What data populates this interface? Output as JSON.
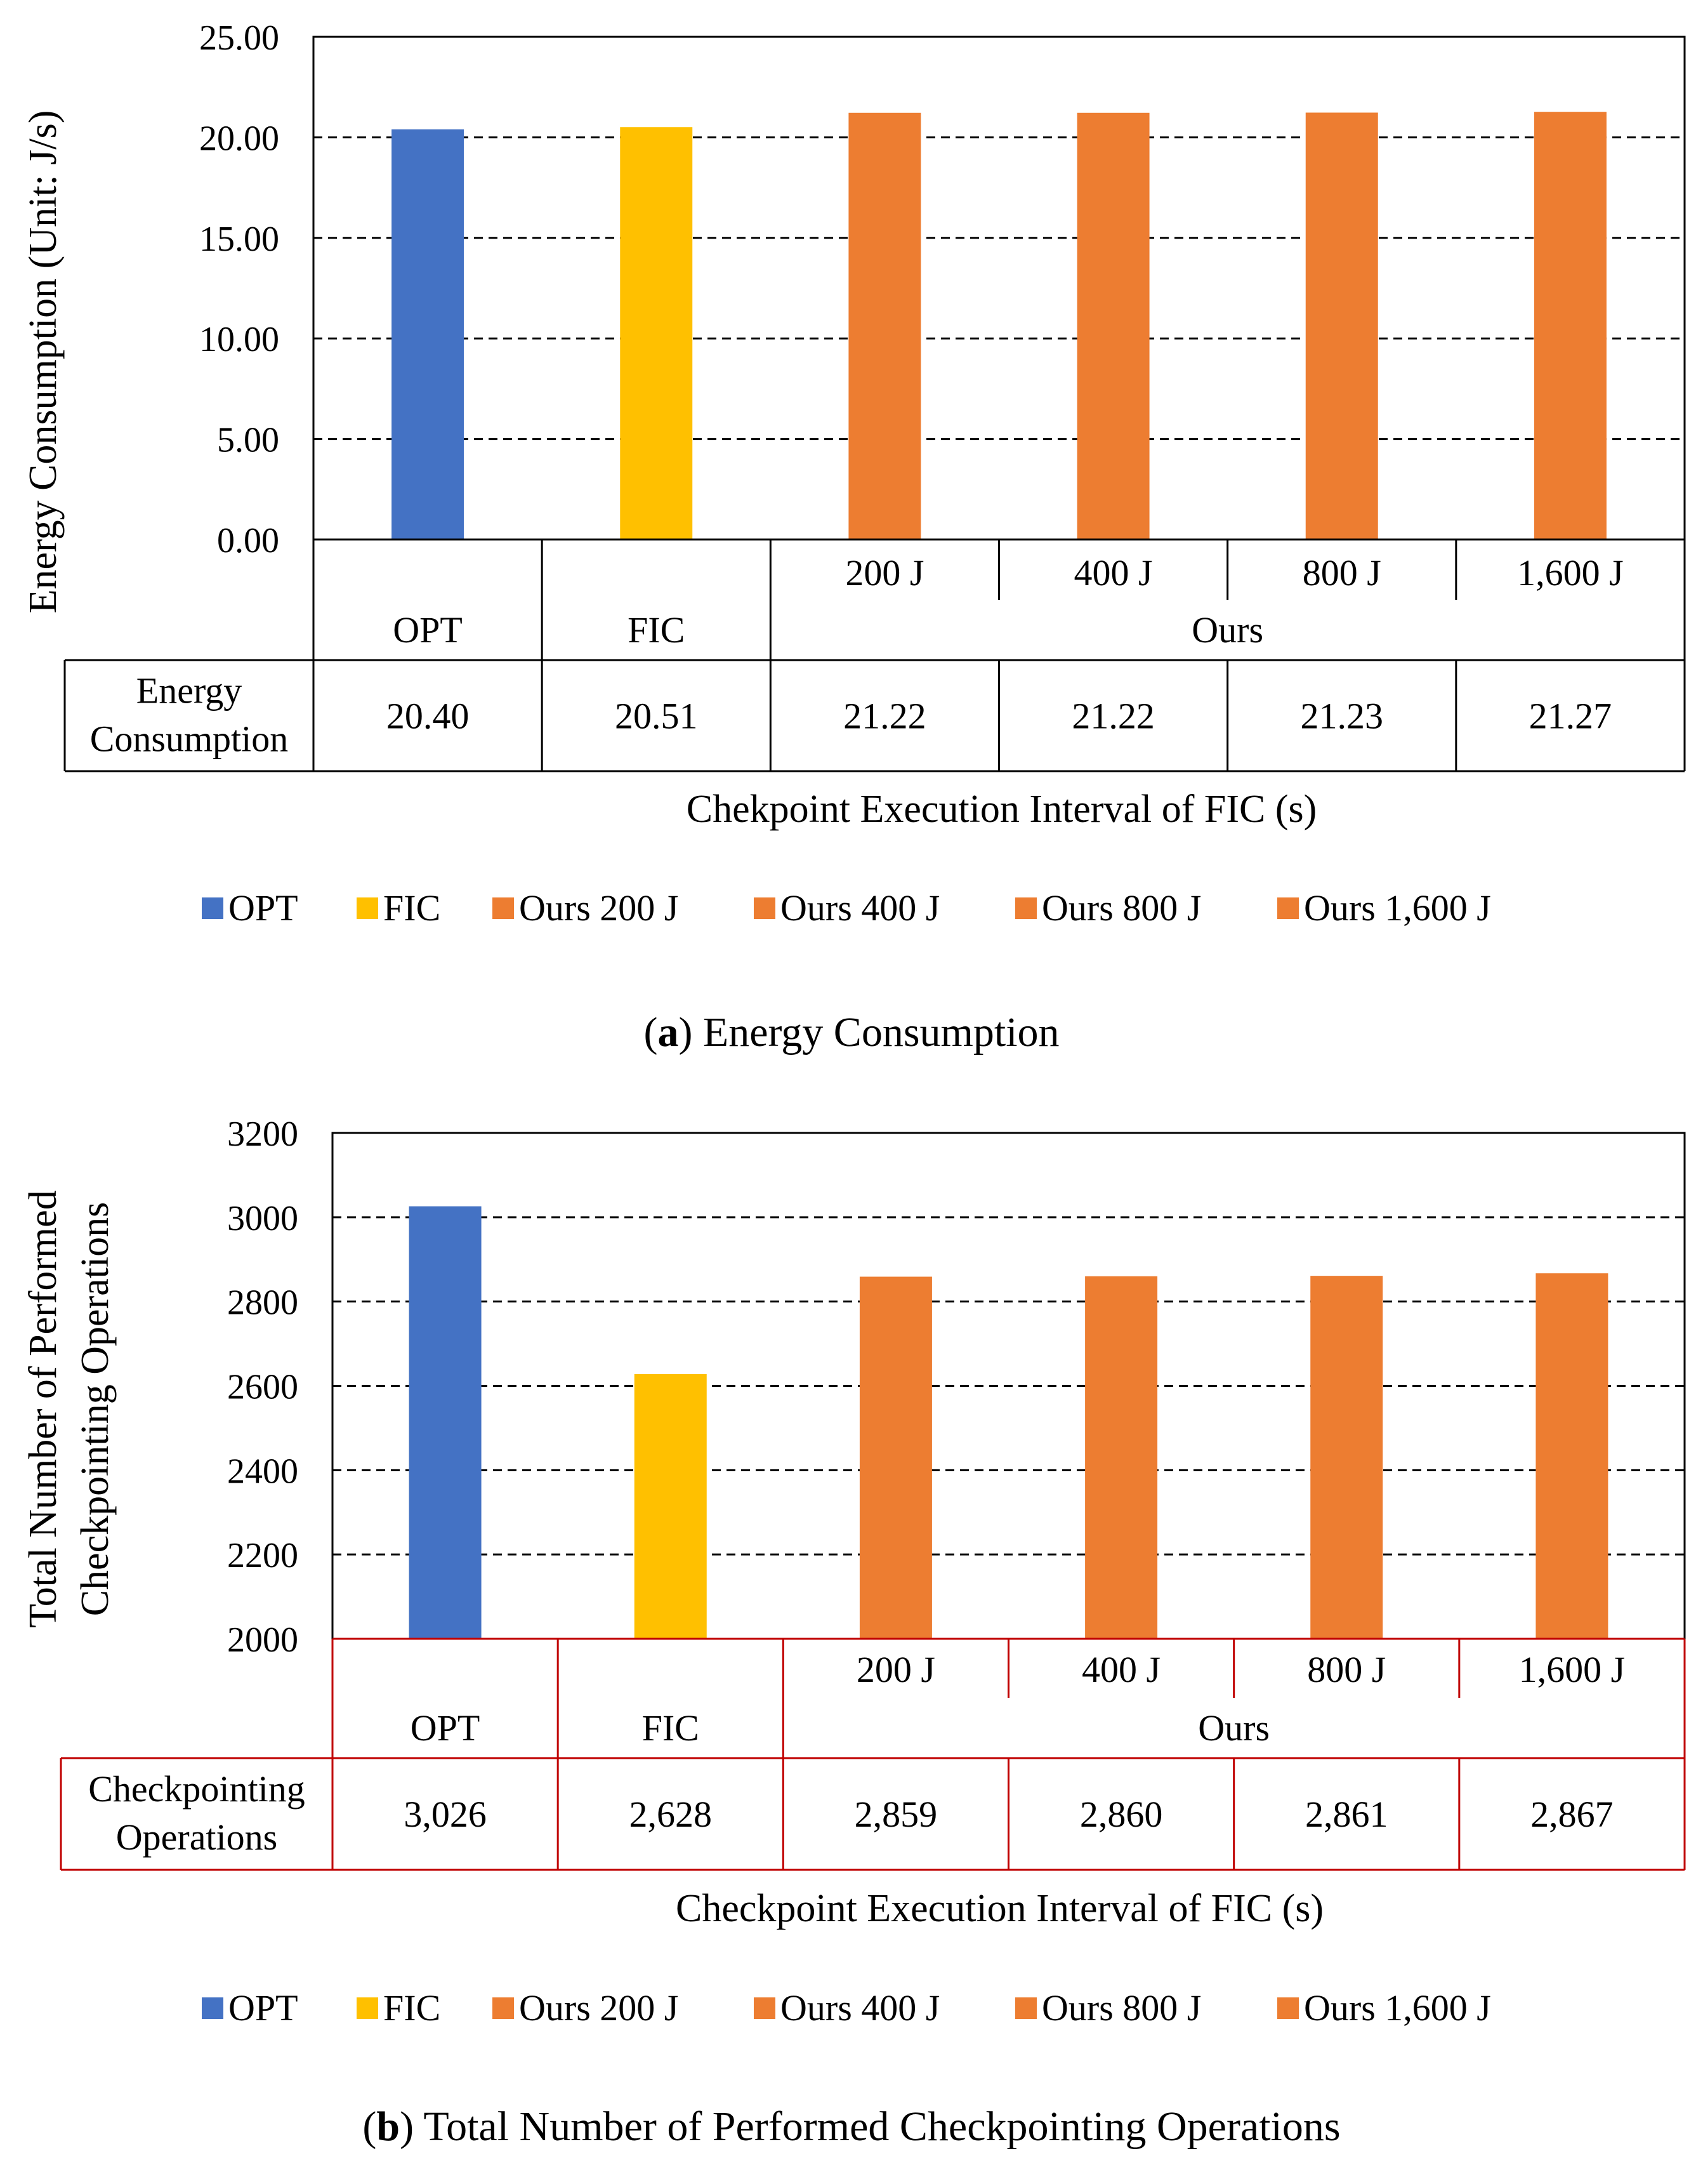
{
  "chart_data": [
    {
      "type": "bar",
      "ylabel": "Energy Consumption (Unit: J/s)",
      "xlabel": "Chekpoint Execution Interval of FIC (s)",
      "caption_letter": "a",
      "caption_text": " Energy Consumption",
      "ylim": [
        0,
        25
      ],
      "yticks": [
        "0.00",
        "5.00",
        "10.00",
        "15.00",
        "20.00",
        "25.00"
      ],
      "categories": [
        "OPT",
        "FIC",
        "200 J",
        "400 J",
        "800 J",
        "1,600 J"
      ],
      "group_label": "Ours",
      "values": [
        20.4,
        20.51,
        21.22,
        21.22,
        21.23,
        21.27
      ],
      "value_labels": [
        "20.40",
        "20.51",
        "21.22",
        "21.22",
        "21.23",
        "21.27"
      ],
      "row_header": [
        "Energy",
        "Consumption"
      ],
      "legend": [
        "OPT",
        "FIC",
        "Ours 200 J",
        "Ours 400 J",
        "Ours 800 J",
        "Ours 1,600 J"
      ],
      "colors": [
        "#4472C4",
        "#FFC000",
        "#ED7D31",
        "#ED7D31",
        "#ED7D31",
        "#ED7D31"
      ],
      "table_line_color": "#000000",
      "grid": true
    },
    {
      "type": "bar",
      "ylabel": [
        "Total Number of Performed",
        "Checkpointing Operations"
      ],
      "xlabel": "Checkpoint Execution Interval of FIC (s)",
      "caption_letter": "b",
      "caption_text": " Total Number of Performed Checkpointing Operations",
      "ylim": [
        2000,
        3200
      ],
      "yticks": [
        "2000",
        "2200",
        "2400",
        "2600",
        "2800",
        "3000",
        "3200"
      ],
      "categories": [
        "OPT",
        "FIC",
        "200 J",
        "400 J",
        "800 J",
        "1,600 J"
      ],
      "group_label": "Ours",
      "values": [
        3026,
        2628,
        2859,
        2860,
        2861,
        2867
      ],
      "value_labels": [
        "3,026",
        "2,628",
        "2,859",
        "2,860",
        "2,861",
        "2,867"
      ],
      "row_header": [
        "Checkpointing",
        "Operations"
      ],
      "legend": [
        "OPT",
        "FIC",
        "Ours 200 J",
        "Ours 400 J",
        "Ours 800 J",
        "Ours 1,600 J"
      ],
      "colors": [
        "#4472C4",
        "#FFC000",
        "#ED7D31",
        "#ED7D31",
        "#ED7D31",
        "#ED7D31"
      ],
      "table_line_color": "#C00000",
      "grid": true
    }
  ]
}
